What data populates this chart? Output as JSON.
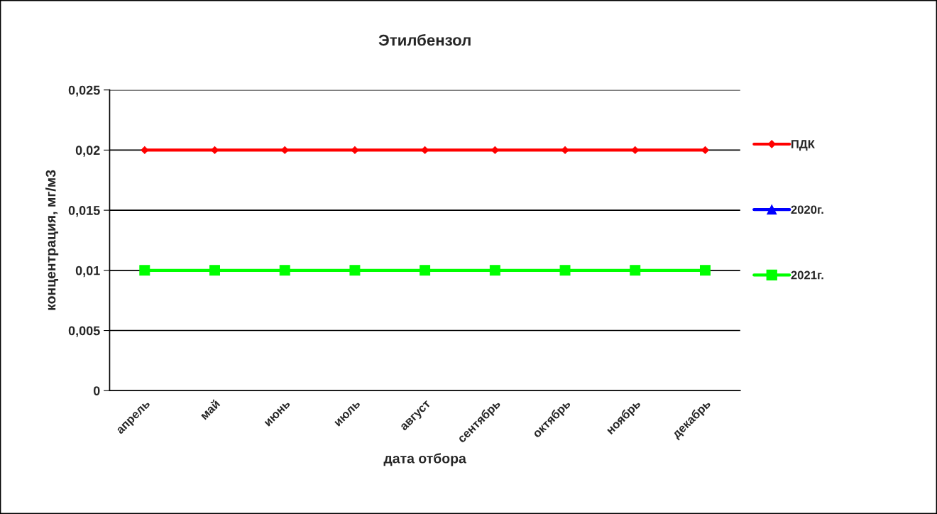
{
  "chart_data": {
    "type": "line",
    "title": "Этилбензол",
    "xlabel": "дата отбора",
    "ylabel": "концентрация, мг/м3",
    "categories": [
      "апрель",
      "май",
      "июнь",
      "июль",
      "август",
      "сентябрь",
      "октябрь",
      "ноябрь",
      "декабрь"
    ],
    "series": [
      {
        "name": "ПДК",
        "color": "#ff0000",
        "marker": "diamond",
        "values": [
          0.02,
          0.02,
          0.02,
          0.02,
          0.02,
          0.02,
          0.02,
          0.02,
          0.02
        ]
      },
      {
        "name": "2020г.",
        "color": "#0000ff",
        "marker": "triangle",
        "values": [
          null,
          null,
          null,
          null,
          null,
          null,
          null,
          null,
          null
        ]
      },
      {
        "name": "2021г.",
        "color": "#00ff00",
        "marker": "square",
        "values": [
          0.01,
          0.01,
          0.01,
          0.01,
          0.01,
          0.01,
          0.01,
          0.01,
          0.01
        ]
      }
    ],
    "ylim": [
      0,
      0.025
    ],
    "yticks": [
      {
        "value": 0,
        "label": "0"
      },
      {
        "value": 0.005,
        "label": "0,005"
      },
      {
        "value": 0.01,
        "label": "0,01"
      },
      {
        "value": 0.015,
        "label": "0,015"
      },
      {
        "value": 0.02,
        "label": "0,02"
      },
      {
        "value": 0.025,
        "label": "0,025"
      }
    ],
    "grid": "y",
    "legend": "right",
    "line_style": "solid"
  }
}
